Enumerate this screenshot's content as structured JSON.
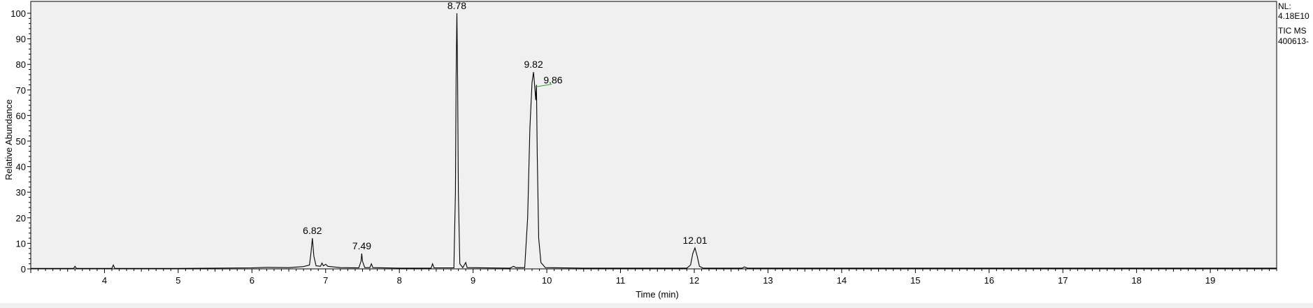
{
  "chart_data": {
    "type": "line",
    "title": "",
    "xlabel": "Time (min)",
    "ylabel": "Relative Abundance",
    "xlim": [
      3,
      19.9
    ],
    "ylim": [
      0,
      100
    ],
    "xticks": [
      4,
      5,
      6,
      7,
      8,
      9,
      10,
      11,
      12,
      13,
      14,
      15,
      16,
      17,
      18,
      19
    ],
    "yticks": [
      0,
      10,
      20,
      30,
      40,
      50,
      60,
      70,
      80,
      90,
      100
    ],
    "info": {
      "nl_label": "NL:",
      "nl_value": "4.18E10",
      "trace": "TIC  MS",
      "file": "400613-"
    },
    "series": [
      {
        "name": "TIC",
        "points": [
          [
            3.0,
            0.2
          ],
          [
            3.58,
            0.2
          ],
          [
            3.6,
            1.0
          ],
          [
            3.62,
            0.2
          ],
          [
            4.1,
            0.2
          ],
          [
            4.12,
            1.5
          ],
          [
            4.14,
            0.2
          ],
          [
            5.0,
            0.2
          ],
          [
            6.0,
            0.4
          ],
          [
            6.2,
            0.6
          ],
          [
            6.5,
            0.5
          ],
          [
            6.7,
            0.9
          ],
          [
            6.78,
            1.5
          ],
          [
            6.8,
            6.0
          ],
          [
            6.82,
            12.0
          ],
          [
            6.84,
            5.0
          ],
          [
            6.87,
            1.2
          ],
          [
            6.93,
            1.0
          ],
          [
            6.95,
            2.3
          ],
          [
            6.97,
            1.2
          ],
          [
            7.0,
            1.8
          ],
          [
            7.03,
            1.0
          ],
          [
            7.1,
            0.8
          ],
          [
            7.2,
            0.5
          ],
          [
            7.45,
            0.4
          ],
          [
            7.48,
            3.0
          ],
          [
            7.49,
            6.0
          ],
          [
            7.5,
            3.0
          ],
          [
            7.53,
            0.5
          ],
          [
            7.6,
            0.5
          ],
          [
            7.62,
            2.0
          ],
          [
            7.64,
            0.5
          ],
          [
            8.0,
            0.3
          ],
          [
            8.43,
            0.3
          ],
          [
            8.45,
            2.0
          ],
          [
            8.47,
            0.4
          ],
          [
            8.74,
            0.4
          ],
          [
            8.76,
            30.0
          ],
          [
            8.77,
            75.0
          ],
          [
            8.78,
            100.0
          ],
          [
            8.79,
            75.0
          ],
          [
            8.8,
            30.0
          ],
          [
            8.82,
            2.0
          ],
          [
            8.86,
            0.5
          ],
          [
            8.9,
            2.5
          ],
          [
            8.92,
            0.5
          ],
          [
            9.5,
            0.3
          ],
          [
            9.55,
            1.0
          ],
          [
            9.58,
            0.5
          ],
          [
            9.7,
            0.5
          ],
          [
            9.74,
            20.0
          ],
          [
            9.77,
            55.0
          ],
          [
            9.8,
            73.0
          ],
          [
            9.82,
            77.0
          ],
          [
            9.84,
            70.0
          ],
          [
            9.85,
            66.0
          ],
          [
            9.86,
            72.0
          ],
          [
            9.87,
            45.0
          ],
          [
            9.89,
            12.0
          ],
          [
            9.92,
            2.5
          ],
          [
            9.98,
            0.5
          ],
          [
            10.5,
            0.3
          ],
          [
            11.9,
            0.3
          ],
          [
            11.95,
            1.5
          ],
          [
            11.98,
            6.0
          ],
          [
            12.01,
            8.2
          ],
          [
            12.04,
            5.0
          ],
          [
            12.07,
            1.0
          ],
          [
            12.12,
            0.3
          ],
          [
            12.65,
            0.3
          ],
          [
            12.68,
            0.8
          ],
          [
            12.72,
            0.3
          ],
          [
            19.9,
            0.3
          ]
        ]
      }
    ],
    "peak_labels": [
      {
        "label": "6.82",
        "x": 6.82,
        "y": 12.0
      },
      {
        "label": "7.49",
        "x": 7.49,
        "y": 6.0
      },
      {
        "label": "8.78",
        "x": 8.78,
        "y": 100.0
      },
      {
        "label": "9.82",
        "x": 9.82,
        "y": 77.0
      },
      {
        "label": "9.86",
        "x": 9.86,
        "y": 72.0
      },
      {
        "label": "12.01",
        "x": 12.01,
        "y": 8.2
      }
    ]
  }
}
